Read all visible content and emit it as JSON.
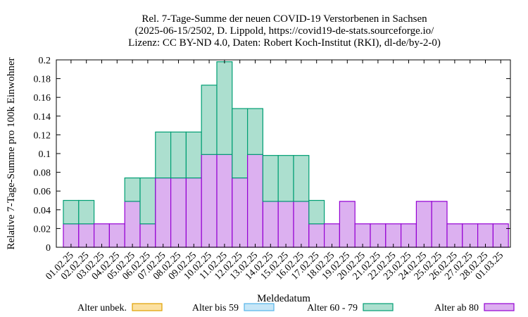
{
  "chart_data": {
    "type": "bar",
    "stacked": true,
    "title_lines": [
      "Rel. 7-Tage-Summe der neuen COVID-19 Verstorbenen in Sachsen",
      "(2025-06-15/2502, D. Lippold, https://covid19-de-stats.sourceforge.io/",
      "Lizenz: CC BY-ND 4.0, Daten: Robert Koch-Institut (RKI), dl-de/by-2-0)"
    ],
    "xlabel": "Meldedatum",
    "ylabel": "Relative 7-Tage-Summe pro 100k Einwohner",
    "ylim": [
      0,
      0.2
    ],
    "yticks": [
      "0",
      "0.02",
      "0.04",
      "0.06",
      "0.08",
      "0.1",
      "0.12",
      "0.14",
      "0.16",
      "0.18",
      "0.2"
    ],
    "grid": false,
    "legend_position": "bottom",
    "categories": [
      "01.02.25",
      "02.02.25",
      "03.02.25",
      "04.02.25",
      "05.02.25",
      "06.02.25",
      "07.02.25",
      "08.02.25",
      "09.02.25",
      "10.02.25",
      "11.02.25",
      "12.02.25",
      "13.02.25",
      "14.02.25",
      "15.02.25",
      "16.02.25",
      "17.02.25",
      "18.02.25",
      "19.02.25",
      "20.02.25",
      "21.02.25",
      "22.02.25",
      "23.02.25",
      "24.02.25",
      "25.02.25",
      "26.02.25",
      "27.02.25",
      "28.02.25",
      "01.03.25"
    ],
    "series": [
      {
        "name": "Alter unbek.",
        "fill": "#fbe0a0",
        "stroke": "#e0a000",
        "values": [
          0,
          0,
          0,
          0,
          0,
          0,
          0,
          0,
          0,
          0,
          0,
          0,
          0,
          0,
          0,
          0,
          0,
          0,
          0,
          0,
          0,
          0,
          0,
          0,
          0,
          0,
          0,
          0,
          0
        ]
      },
      {
        "name": "Alter bis 59",
        "fill": "#c6e6f7",
        "stroke": "#56b4e9",
        "values": [
          0,
          0,
          0,
          0,
          0,
          0,
          0,
          0,
          0,
          0,
          0,
          0,
          0,
          0,
          0,
          0,
          0,
          0,
          0,
          0,
          0,
          0,
          0,
          0,
          0,
          0,
          0,
          0,
          0
        ]
      },
      {
        "name": "Alter 60 - 79",
        "fill": "#acdfcf",
        "stroke": "#009e73",
        "values": [
          0.025,
          0.025,
          0,
          0,
          0.025,
          0.049,
          0.049,
          0.049,
          0.049,
          0.074,
          0.099,
          0.074,
          0.049,
          0.049,
          0.049,
          0.049,
          0.025,
          0,
          0,
          0,
          0,
          0,
          0,
          0,
          0,
          0,
          0,
          0,
          0
        ]
      },
      {
        "name": "Alter ab 80",
        "fill": "#dcb0f0",
        "stroke": "#9400d3",
        "values": [
          0.025,
          0.025,
          0.025,
          0.025,
          0.049,
          0.025,
          0.074,
          0.074,
          0.074,
          0.099,
          0.099,
          0.074,
          0.099,
          0.049,
          0.049,
          0.049,
          0.025,
          0.025,
          0.049,
          0.025,
          0.025,
          0.025,
          0.025,
          0.049,
          0.049,
          0.025,
          0.025,
          0.025,
          0.025
        ]
      }
    ]
  }
}
